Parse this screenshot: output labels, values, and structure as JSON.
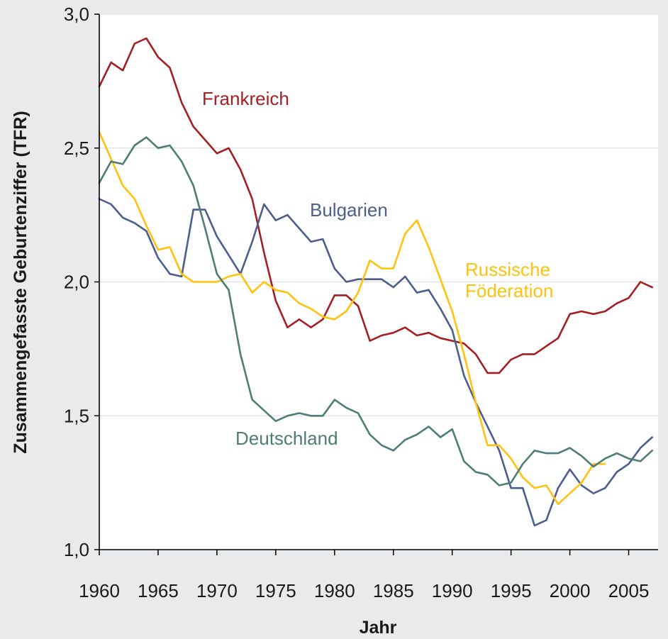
{
  "chart_data": {
    "type": "line",
    "title": "",
    "xlabel": "Jahr",
    "ylabel": "Zusammengefasste Geburtenziffer (TFR)",
    "xlim": [
      1960,
      2007.5
    ],
    "ylim": [
      1.0,
      3.0
    ],
    "x_ticks": [
      1960,
      1965,
      1970,
      1975,
      1980,
      1985,
      1990,
      1995,
      2000,
      2005
    ],
    "x_tick_labels": [
      "1960",
      "1965",
      "1970",
      "1975",
      "1980",
      "1985",
      "1990",
      "1995",
      "2000",
      "2005"
    ],
    "y_ticks": [
      1.0,
      1.5,
      2.0,
      2.5,
      3.0
    ],
    "y_tick_labels": [
      "1,0",
      "1,5",
      "2,0",
      "2,5",
      "3,0"
    ],
    "grid": "horizontal",
    "legend": "inline labels",
    "series": [
      {
        "name": "Frankreich",
        "color": "#a51e22",
        "x": [
          1960,
          1961,
          1962,
          1963,
          1964,
          1965,
          1966,
          1967,
          1968,
          1969,
          1970,
          1971,
          1972,
          1973,
          1974,
          1975,
          1976,
          1977,
          1978,
          1979,
          1980,
          1981,
          1982,
          1983,
          1984,
          1985,
          1986,
          1987,
          1988,
          1989,
          1990,
          1991,
          1992,
          1993,
          1994,
          1995,
          1996,
          1997,
          1998,
          1999,
          2000,
          2001,
          2002,
          2003,
          2004,
          2005,
          2006,
          2007
        ],
        "values": [
          2.73,
          2.82,
          2.79,
          2.89,
          2.91,
          2.84,
          2.8,
          2.67,
          2.58,
          2.53,
          2.48,
          2.5,
          2.42,
          2.31,
          2.11,
          1.93,
          1.83,
          1.86,
          1.83,
          1.86,
          1.95,
          1.95,
          1.91,
          1.78,
          1.8,
          1.81,
          1.83,
          1.8,
          1.81,
          1.79,
          1.78,
          1.77,
          1.73,
          1.66,
          1.66,
          1.71,
          1.73,
          1.73,
          1.76,
          1.79,
          1.88,
          1.89,
          1.88,
          1.89,
          1.92,
          1.94,
          2.0,
          1.98
        ]
      },
      {
        "name": "Bulgarien",
        "color": "#4d5d8e",
        "x": [
          1960,
          1961,
          1962,
          1963,
          1964,
          1965,
          1966,
          1967,
          1968,
          1969,
          1970,
          1971,
          1972,
          1973,
          1974,
          1975,
          1976,
          1977,
          1978,
          1979,
          1980,
          1981,
          1982,
          1983,
          1984,
          1985,
          1986,
          1987,
          1988,
          1989,
          1990,
          1991,
          1992,
          1993,
          1994,
          1995,
          1996,
          1997,
          1998,
          1999,
          2000,
          2001,
          2002,
          2003,
          2004,
          2005,
          2006,
          2007
        ],
        "values": [
          2.31,
          2.29,
          2.24,
          2.22,
          2.19,
          2.09,
          2.03,
          2.02,
          2.27,
          2.27,
          2.17,
          2.1,
          2.03,
          2.15,
          2.29,
          2.23,
          2.25,
          2.2,
          2.15,
          2.16,
          2.05,
          2.0,
          2.01,
          2.01,
          2.01,
          1.98,
          2.02,
          1.96,
          1.97,
          1.9,
          1.82,
          1.65,
          1.55,
          1.46,
          1.37,
          1.23,
          1.23,
          1.09,
          1.11,
          1.23,
          1.3,
          1.24,
          1.21,
          1.23,
          1.29,
          1.32,
          1.38,
          1.42
        ]
      },
      {
        "name": "Russische Föderation",
        "label_lines": [
          "Russische",
          "Föderation"
        ],
        "color": "#ffc20e",
        "x": [
          1960,
          1961,
          1962,
          1963,
          1964,
          1965,
          1966,
          1967,
          1968,
          1969,
          1970,
          1971,
          1972,
          1973,
          1974,
          1975,
          1976,
          1977,
          1978,
          1979,
          1980,
          1981,
          1982,
          1983,
          1984,
          1985,
          1986,
          1987,
          1988,
          1989,
          1990,
          1991,
          1992,
          1993,
          1994,
          1995,
          1996,
          1997,
          1998,
          1999,
          2000,
          2001,
          2002,
          2003
        ],
        "values": [
          2.56,
          2.46,
          2.36,
          2.31,
          2.21,
          2.12,
          2.13,
          2.03,
          2.0,
          2.0,
          2.0,
          2.02,
          2.03,
          1.96,
          2.0,
          1.97,
          1.96,
          1.92,
          1.9,
          1.87,
          1.86,
          1.89,
          1.96,
          2.08,
          2.05,
          2.05,
          2.18,
          2.23,
          2.13,
          2.01,
          1.89,
          1.73,
          1.55,
          1.39,
          1.39,
          1.34,
          1.27,
          1.23,
          1.24,
          1.17,
          1.21,
          1.25,
          1.32,
          1.32
        ]
      },
      {
        "name": "Deutschland",
        "color": "#4d7d75",
        "x": [
          1960,
          1961,
          1962,
          1963,
          1964,
          1965,
          1966,
          1967,
          1968,
          1969,
          1970,
          1971,
          1972,
          1973,
          1974,
          1975,
          1976,
          1977,
          1978,
          1979,
          1980,
          1981,
          1982,
          1983,
          1984,
          1985,
          1986,
          1987,
          1988,
          1989,
          1990,
          1991,
          1992,
          1993,
          1994,
          1995,
          1996,
          1997,
          1998,
          1999,
          2000,
          2001,
          2002,
          2003,
          2004,
          2005,
          2006,
          2007
        ],
        "values": [
          2.37,
          2.45,
          2.44,
          2.51,
          2.54,
          2.5,
          2.51,
          2.45,
          2.36,
          2.2,
          2.03,
          1.97,
          1.73,
          1.56,
          1.52,
          1.48,
          1.5,
          1.51,
          1.5,
          1.5,
          1.56,
          1.53,
          1.51,
          1.43,
          1.39,
          1.37,
          1.41,
          1.43,
          1.46,
          1.42,
          1.45,
          1.33,
          1.29,
          1.28,
          1.24,
          1.25,
          1.32,
          1.37,
          1.36,
          1.36,
          1.38,
          1.35,
          1.31,
          1.34,
          1.36,
          1.34,
          1.33,
          1.37
        ]
      }
    ],
    "annotations": [
      {
        "text": "Frankreich",
        "series": "Frankreich"
      },
      {
        "text": "Bulgarien",
        "series": "Bulgarien"
      },
      {
        "text": "Russische Föderation",
        "series": "Russische Föderation"
      },
      {
        "text": "Deutschland",
        "series": "Deutschland"
      }
    ]
  }
}
